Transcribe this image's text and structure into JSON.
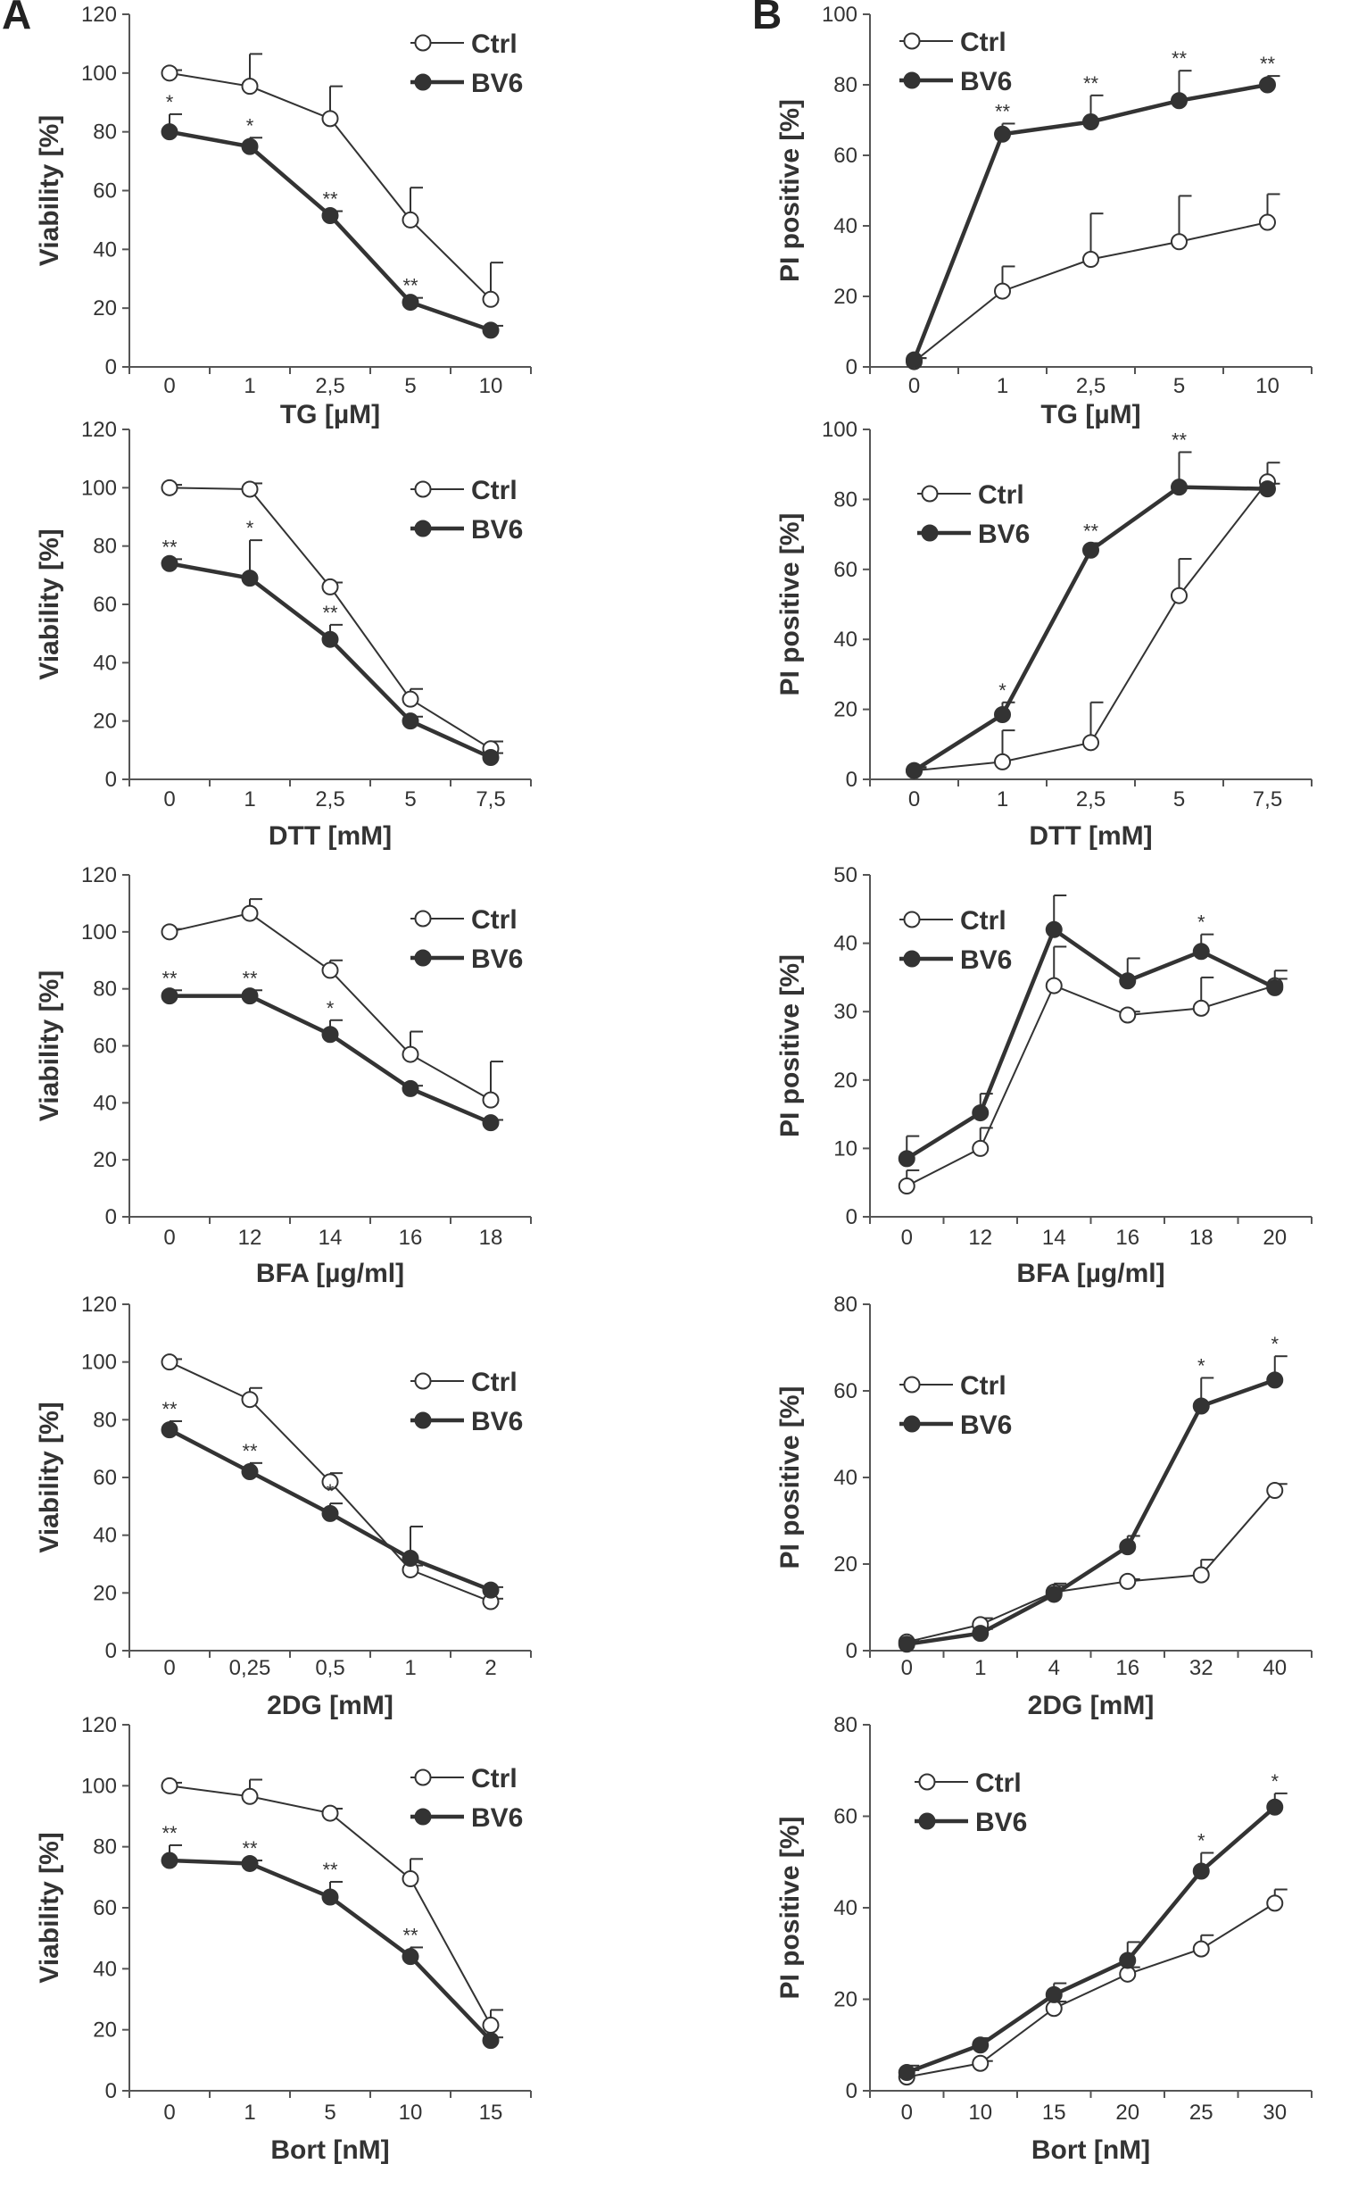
{
  "panels": [
    {
      "letter": "A"
    },
    {
      "letter": "B"
    }
  ],
  "colors": {
    "ctrl_marker_fill": "#ffffff",
    "bv6_marker_fill": "#333333",
    "line": "#333333",
    "axis": "#555555"
  },
  "chart_data": [
    {
      "type": "line",
      "panel": "A",
      "ylabel": "Viability [%]",
      "xlabel": "TG [µM]",
      "categories": [
        "0",
        "1",
        "2,5",
        "5",
        "10"
      ],
      "ylim": [
        0,
        120
      ],
      "yticks": [
        0,
        20,
        40,
        60,
        80,
        100,
        120
      ],
      "legend_position": "top-right",
      "series": [
        {
          "name": "Ctrl",
          "values": [
            100,
            95.5,
            84.5,
            50,
            23
          ],
          "errors": [
            1,
            11,
            11,
            11,
            12.5
          ],
          "significance": [
            "",
            "",
            "",
            "",
            ""
          ]
        },
        {
          "name": "BV6",
          "values": [
            80,
            75,
            51.5,
            22,
            12.5
          ],
          "errors": [
            6,
            3,
            1.5,
            1.5,
            1.5
          ],
          "significance": [
            "*",
            "*",
            "**",
            "**",
            ""
          ]
        }
      ]
    },
    {
      "type": "line",
      "panel": "B",
      "ylabel": "PI positive [%]",
      "xlabel": "TG [µM]",
      "categories": [
        "0",
        "1",
        "2,5",
        "5",
        "10"
      ],
      "ylim": [
        0,
        100
      ],
      "yticks": [
        0,
        20,
        40,
        60,
        80,
        100
      ],
      "legend_position": "top-left",
      "series": [
        {
          "name": "Ctrl",
          "values": [
            1.5,
            21.5,
            30.5,
            35.5,
            41
          ],
          "errors": [
            1,
            7,
            13,
            13,
            8
          ],
          "significance": [
            "",
            "",
            "",
            "",
            ""
          ]
        },
        {
          "name": "BV6",
          "values": [
            2,
            66,
            69.5,
            75.5,
            80
          ],
          "errors": [
            0.5,
            3,
            7.5,
            8.5,
            2.5
          ],
          "significance": [
            "",
            "**",
            "**",
            "**",
            "**"
          ]
        }
      ]
    },
    {
      "type": "line",
      "panel": "A",
      "ylabel": "Viability [%]",
      "xlabel": "DTT [mM]",
      "categories": [
        "0",
        "1",
        "2,5",
        "5",
        "7,5"
      ],
      "ylim": [
        0,
        120
      ],
      "yticks": [
        0,
        20,
        40,
        60,
        80,
        100,
        120
      ],
      "legend_position": "top-right",
      "series": [
        {
          "name": "Ctrl",
          "values": [
            100,
            99.5,
            66,
            27.5,
            10.5
          ],
          "errors": [
            1,
            2,
            1.5,
            3.5,
            2.5
          ],
          "significance": [
            "",
            "",
            "",
            "",
            ""
          ]
        },
        {
          "name": "BV6",
          "values": [
            74,
            69,
            48,
            20,
            7.5
          ],
          "errors": [
            1.5,
            13,
            5,
            1.5,
            1.5
          ],
          "significance": [
            "**",
            "*",
            "**",
            "",
            ""
          ]
        }
      ]
    },
    {
      "type": "line",
      "panel": "B",
      "ylabel": "PI positive [%]",
      "xlabel": "DTT [mM]",
      "categories": [
        "0",
        "1",
        "2,5",
        "5",
        "7,5"
      ],
      "ylim": [
        0,
        100
      ],
      "yticks": [
        0,
        20,
        40,
        60,
        80,
        100
      ],
      "legend_position": "top-left",
      "series": [
        {
          "name": "Ctrl",
          "values": [
            2.5,
            5,
            10.5,
            52.5,
            85
          ],
          "errors": [
            1,
            9,
            11.5,
            10.5,
            5.5
          ],
          "significance": [
            "",
            "",
            "",
            "",
            ""
          ]
        },
        {
          "name": "BV6",
          "values": [
            2.5,
            18.5,
            65.5,
            83.5,
            83
          ],
          "errors": [
            0.5,
            3.5,
            2,
            10,
            1.5
          ],
          "significance": [
            "",
            "*",
            "**",
            "**",
            ""
          ]
        }
      ]
    },
    {
      "type": "line",
      "panel": "A",
      "ylabel": "Viability [%]",
      "xlabel": "BFA [µg/ml]",
      "categories": [
        "0",
        "12",
        "14",
        "16",
        "18"
      ],
      "ylim": [
        0,
        120
      ],
      "yticks": [
        0,
        20,
        40,
        60,
        80,
        100,
        120
      ],
      "legend_position": "top-right",
      "series": [
        {
          "name": "Ctrl",
          "values": [
            100,
            106.5,
            86.5,
            57,
            41
          ],
          "errors": [
            1,
            5,
            3.5,
            8,
            13.5
          ],
          "significance": [
            "",
            "",
            "",
            "",
            ""
          ]
        },
        {
          "name": "BV6",
          "values": [
            77.5,
            77.5,
            64,
            45,
            33
          ],
          "errors": [
            2,
            2,
            5,
            1,
            1
          ],
          "significance": [
            "**",
            "**",
            "*",
            "",
            ""
          ]
        }
      ]
    },
    {
      "type": "line",
      "panel": "B",
      "ylabel": "PI positive [%]",
      "xlabel": "BFA [µg/ml]",
      "categories": [
        "0",
        "12",
        "14",
        "16",
        "18",
        "20"
      ],
      "ylim": [
        0,
        50
      ],
      "yticks": [
        0,
        10,
        20,
        30,
        40,
        50
      ],
      "legend_position": "top-left",
      "series": [
        {
          "name": "Ctrl",
          "values": [
            4.5,
            10,
            33.8,
            29.5,
            30.5,
            33.8
          ],
          "errors": [
            2.3,
            3,
            5.7,
            0.5,
            4.5,
            1
          ],
          "significance": [
            "",
            "",
            "",
            "",
            "",
            ""
          ]
        },
        {
          "name": "BV6",
          "values": [
            8.5,
            15.2,
            42,
            34.5,
            38.8,
            33.5
          ],
          "errors": [
            3.3,
            2.8,
            5,
            3.3,
            2.5,
            2.5
          ],
          "significance": [
            "",
            "",
            "",
            "",
            "*",
            ""
          ]
        }
      ]
    },
    {
      "type": "line",
      "panel": "A",
      "ylabel": "Viability [%]",
      "xlabel": "2DG [mM]",
      "categories": [
        "0",
        "0,25",
        "0,5",
        "1",
        "2"
      ],
      "ylim": [
        0,
        120
      ],
      "yticks": [
        0,
        20,
        40,
        60,
        80,
        100,
        120
      ],
      "legend_position": "top-right",
      "series": [
        {
          "name": "Ctrl",
          "values": [
            100,
            87,
            58.5,
            28,
            17
          ],
          "errors": [
            1,
            4,
            3,
            1.5,
            1
          ],
          "significance": [
            "",
            "",
            "",
            "",
            ""
          ]
        },
        {
          "name": "BV6",
          "values": [
            76.5,
            62,
            47.5,
            32,
            21
          ],
          "errors": [
            3,
            3,
            3.5,
            11,
            1
          ],
          "significance": [
            "**",
            "**",
            "*",
            "",
            ""
          ]
        }
      ]
    },
    {
      "type": "line",
      "panel": "B",
      "ylabel": "PI positive [%]",
      "xlabel": "2DG [mM]",
      "categories": [
        "0",
        "1",
        "4",
        "16",
        "32",
        "40"
      ],
      "ylim": [
        0,
        80
      ],
      "yticks": [
        0,
        20,
        40,
        60,
        80
      ],
      "legend_position": "top-left",
      "series": [
        {
          "name": "Ctrl",
          "values": [
            2,
            6,
            13.5,
            16,
            17.5,
            37
          ],
          "errors": [
            0.5,
            1.5,
            1.5,
            0.5,
            3.5,
            1.5
          ],
          "significance": [
            "",
            "",
            "",
            "",
            "",
            ""
          ]
        },
        {
          "name": "BV6",
          "values": [
            1.5,
            4,
            13,
            24,
            56.5,
            62.5
          ],
          "errors": [
            0.5,
            1,
            2.5,
            2.5,
            6.5,
            5.5
          ],
          "significance": [
            "",
            "",
            "",
            "",
            "*",
            "*"
          ]
        }
      ]
    },
    {
      "type": "line",
      "panel": "A",
      "ylabel": "Viability [%]",
      "xlabel": "Bort [nM]",
      "categories": [
        "0",
        "1",
        "5",
        "10",
        "15"
      ],
      "ylim": [
        0,
        120
      ],
      "yticks": [
        0,
        20,
        40,
        60,
        80,
        100,
        120
      ],
      "legend_position": "top-right",
      "series": [
        {
          "name": "Ctrl",
          "values": [
            100,
            96.5,
            91,
            69.5,
            21.5
          ],
          "errors": [
            1,
            5.5,
            1.5,
            6.5,
            5
          ],
          "significance": [
            "",
            "",
            "",
            "",
            ""
          ]
        },
        {
          "name": "BV6",
          "values": [
            75.5,
            74.5,
            63.5,
            44,
            16.5
          ],
          "errors": [
            5,
            1,
            5,
            3,
            1
          ],
          "significance": [
            "**",
            "**",
            "**",
            "**",
            ""
          ]
        }
      ]
    },
    {
      "type": "line",
      "panel": "B",
      "ylabel": "PI positive [%]",
      "xlabel": "Bort [nM]",
      "categories": [
        "0",
        "10",
        "15",
        "20",
        "25",
        "30"
      ],
      "ylim": [
        0,
        80
      ],
      "yticks": [
        0,
        20,
        40,
        60,
        80
      ],
      "legend_position": "top-left",
      "series": [
        {
          "name": "Ctrl",
          "values": [
            3,
            6,
            18,
            25.5,
            31,
            41
          ],
          "errors": [
            1.5,
            0.5,
            1.5,
            1.5,
            3,
            3
          ],
          "significance": [
            "",
            "",
            "",
            "",
            "",
            ""
          ]
        },
        {
          "name": "BV6",
          "values": [
            4,
            10,
            21,
            28.5,
            48,
            62
          ],
          "errors": [
            1.5,
            1.5,
            2.5,
            4,
            4,
            3
          ],
          "significance": [
            "",
            "",
            "",
            "",
            "*",
            "*"
          ]
        }
      ]
    }
  ]
}
